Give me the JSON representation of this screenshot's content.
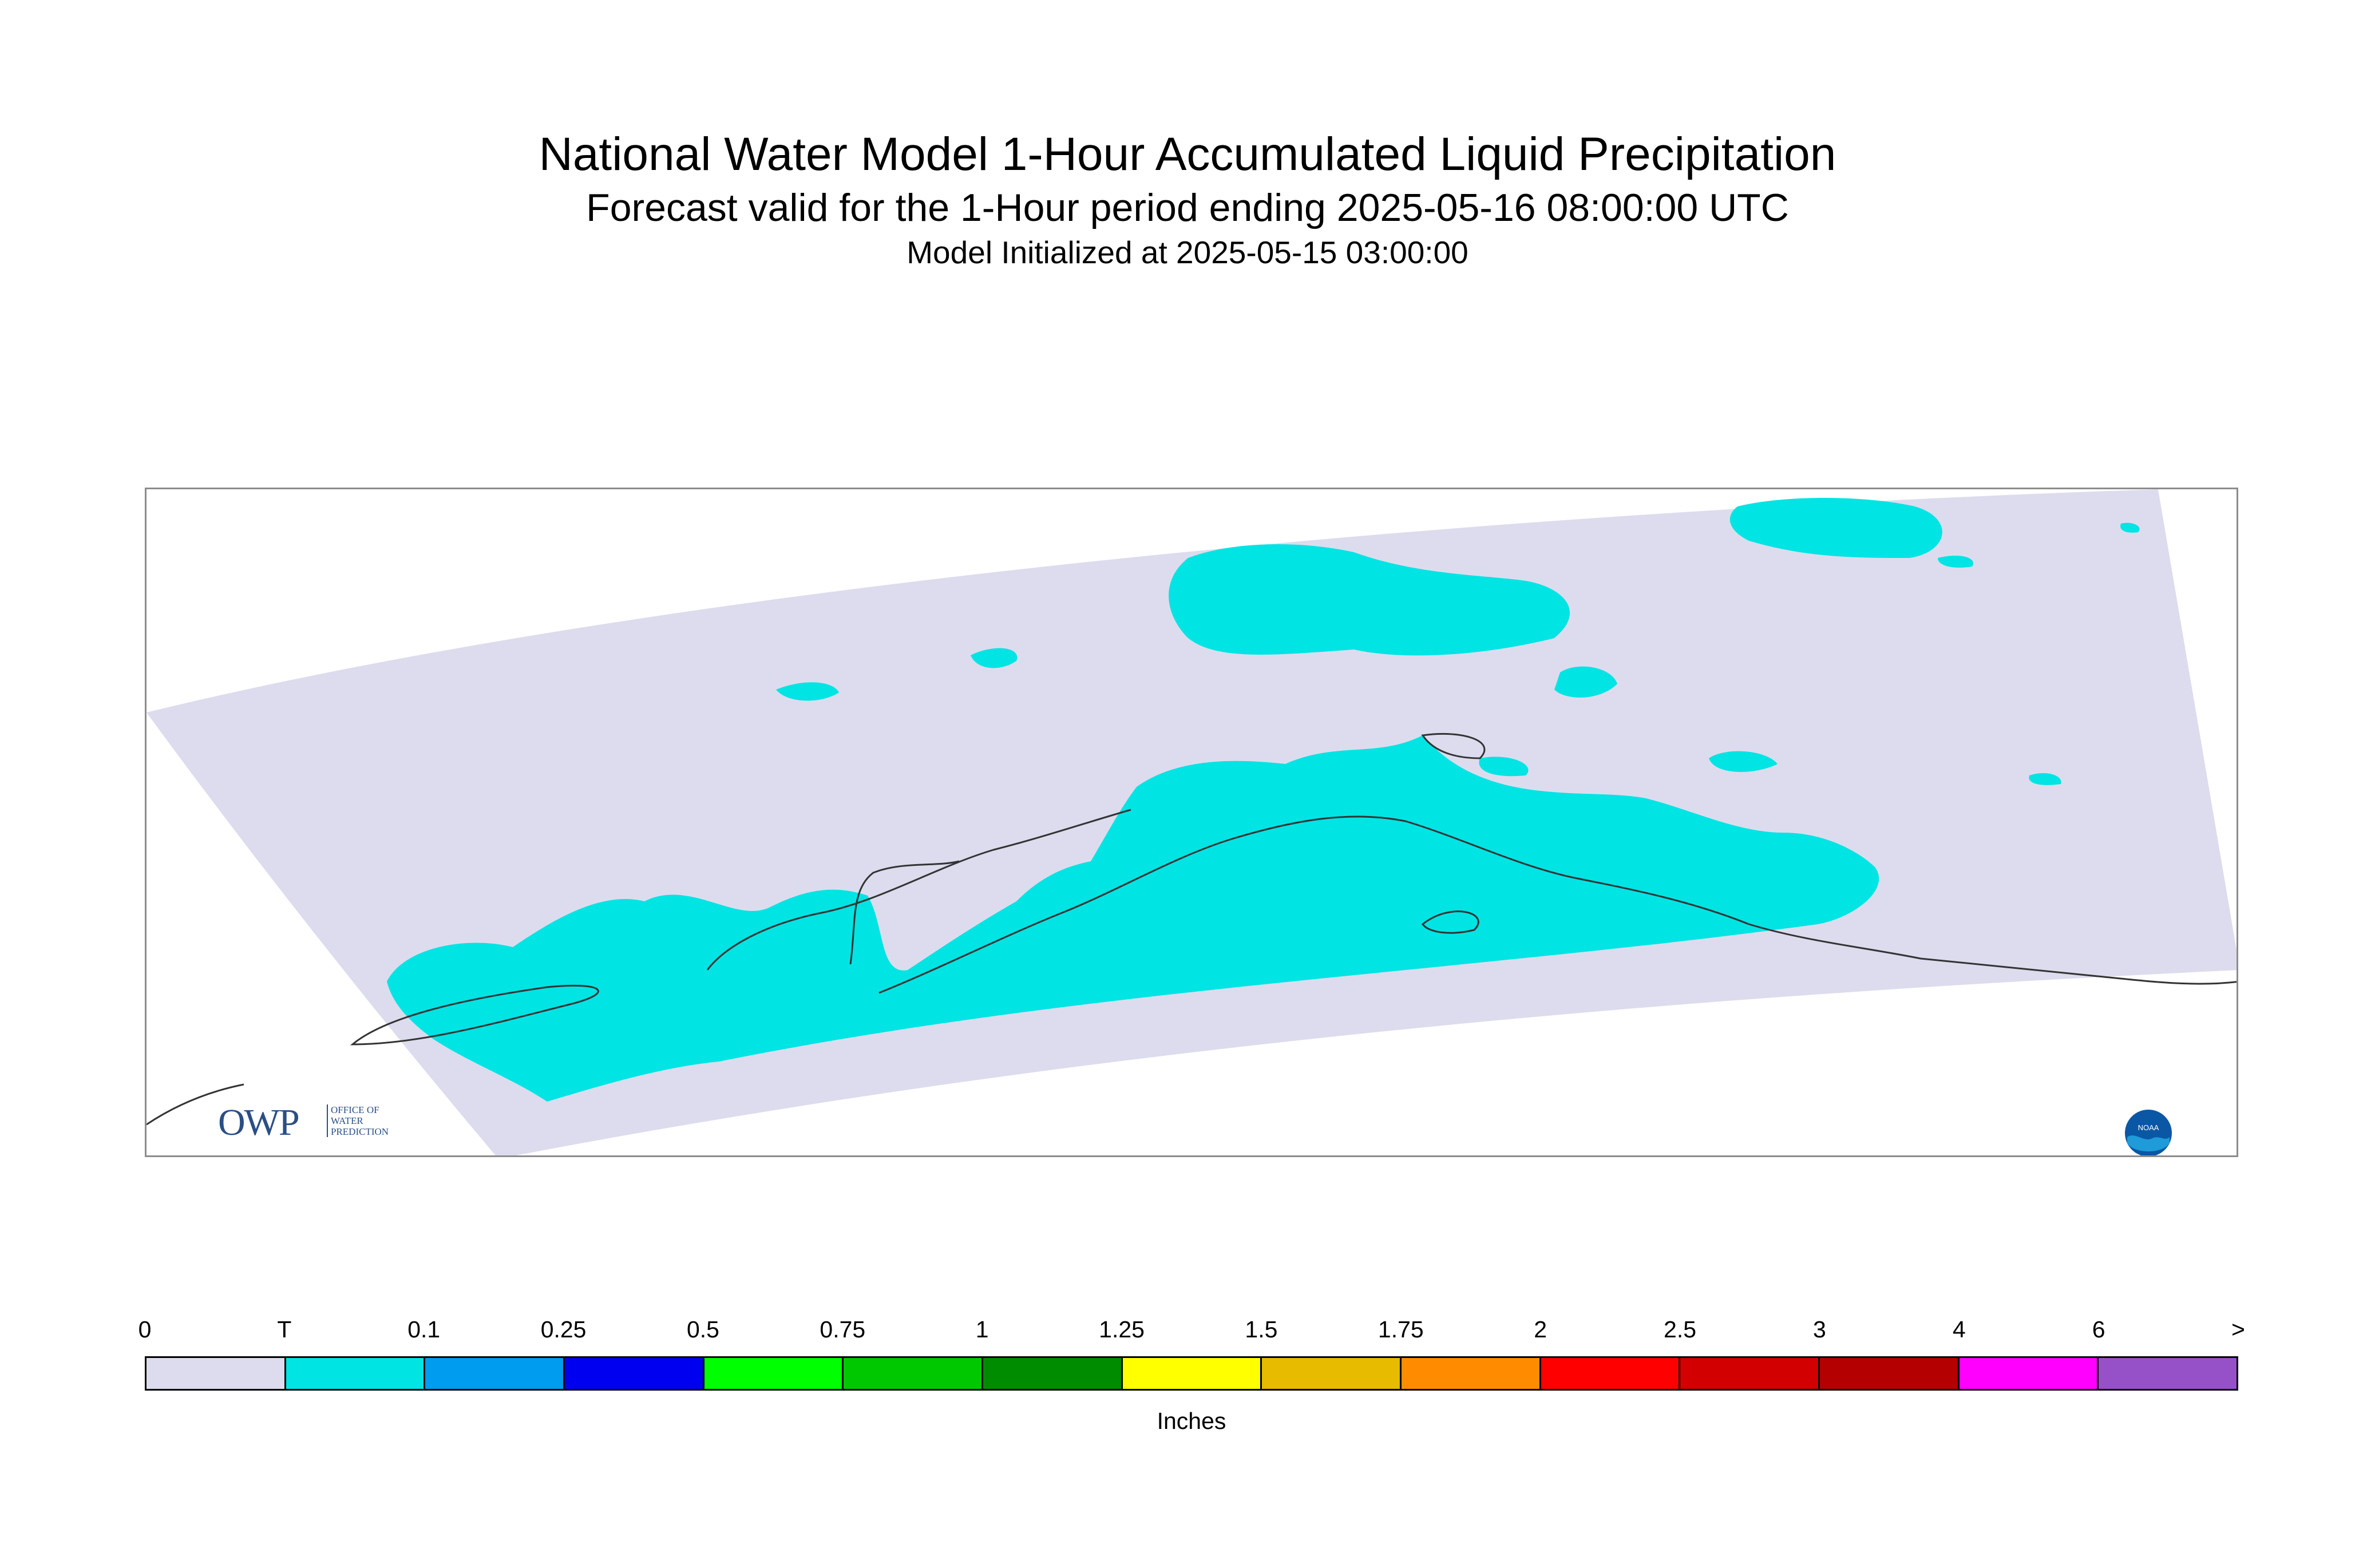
{
  "title": "National Water Model 1-Hour Accumulated Liquid Precipitation",
  "subtitle": "Forecast valid for the 1-Hour period ending 2025-05-16 08:00:00 UTC",
  "init_line": "Model Initialized at 2025-05-15 03:00:00",
  "map": {
    "region_fill": "#dcdcee",
    "precip_fill": "#00e4e4",
    "coast_color": "#333333",
    "logos": {
      "owp_letters": "OWP",
      "owp_text": [
        "OFFICE OF",
        "WATER",
        "PREDICTION"
      ],
      "noaa_text": "NOAA"
    }
  },
  "legend": {
    "units": "Inches",
    "tick_labels": [
      "0",
      "T",
      "0.1",
      "0.25",
      "0.5",
      "0.75",
      "1",
      "1.25",
      "1.5",
      "1.75",
      "2",
      "2.5",
      "3",
      "4",
      "6",
      ">"
    ],
    "colors": [
      "#dcdcee",
      "#00e4e4",
      "#009cf0",
      "#0000f0",
      "#00ff00",
      "#00c800",
      "#008c00",
      "#ffff00",
      "#e6bb00",
      "#ff8c00",
      "#ff0000",
      "#d20000",
      "#b40000",
      "#ff00ff",
      "#9650c8"
    ]
  }
}
